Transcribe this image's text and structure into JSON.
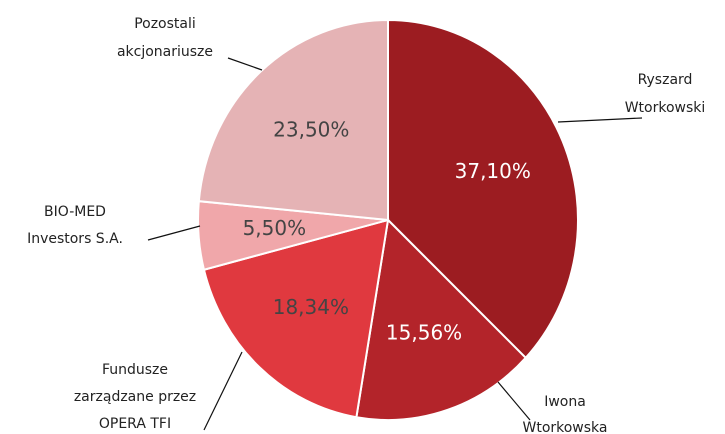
{
  "chart_data": {
    "type": "pie",
    "categories": [
      [
        "Ryszard",
        "Wtorkowski"
      ],
      [
        "Iwona",
        "Wtorkowska"
      ],
      [
        "Fundusze",
        "zarządzane przez",
        "OPERA TFI"
      ],
      [
        "BIO-MED",
        "Investors  S.A."
      ],
      [
        "Pozostali",
        "akcjonariusze"
      ]
    ],
    "values": [
      37.1,
      15.56,
      18.34,
      5.5,
      23.5
    ],
    "value_labels": [
      "37,10%",
      "15,56%",
      "18,34%",
      "5,50%",
      "23,50%"
    ],
    "colors": [
      "#9c1c21",
      "#b3242a",
      "#e0393f",
      "#f0a7aa",
      "#e5b3b5"
    ]
  }
}
